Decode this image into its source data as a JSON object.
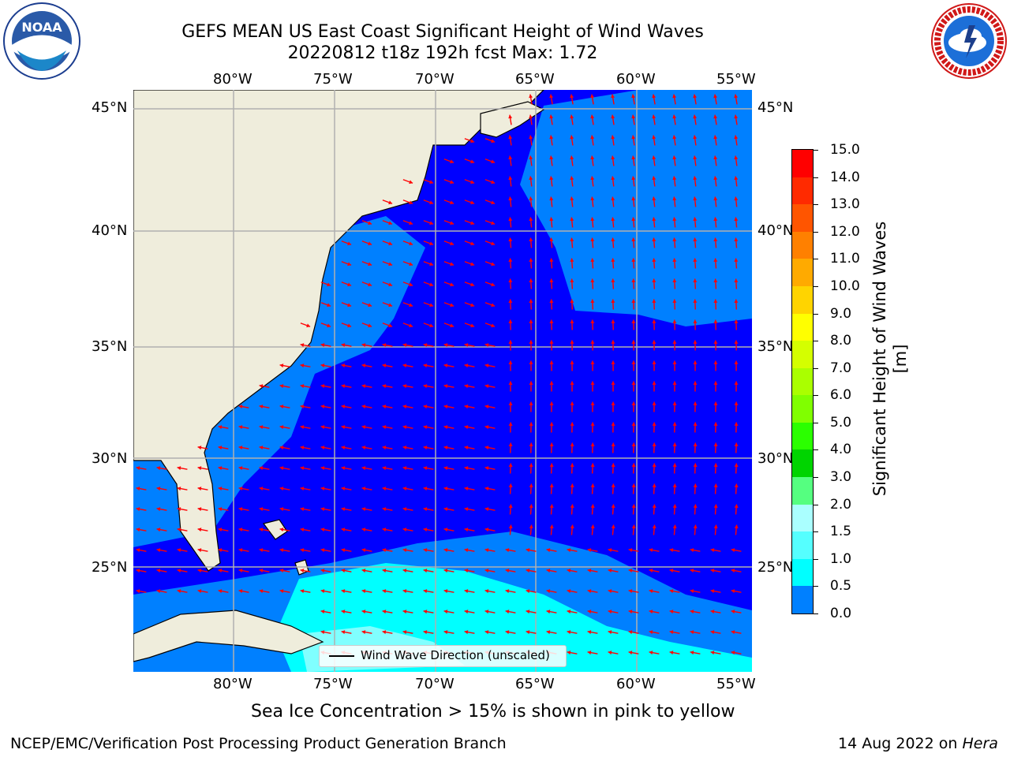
{
  "title": {
    "line1": "GEFS MEAN US East Coast Significant Height of Wind Waves",
    "line2": "20220812 t18z 192h fcst   Max: 1.72"
  },
  "logos": {
    "left": "NOAA",
    "right_text": "NATIONAL WEATHER SERVICE"
  },
  "map": {
    "lon_labels": [
      "80°W",
      "75°W",
      "70°W",
      "65°W",
      "60°W",
      "55°W"
    ],
    "lat_labels": [
      "45°N",
      "40°N",
      "35°N",
      "30°N",
      "25°N"
    ],
    "legend_label": "Wind Wave Direction (unscaled)",
    "colors": {
      "land": "#efeddc",
      "ocean_deep": "#0000ff",
      "ocean_mid": "#0080ff",
      "ocean_light": "#00ffff",
      "ocean_pale": "#80ffff",
      "arrows": "#ff0000",
      "grid": "#b0b0b0"
    }
  },
  "colorbar": {
    "label": "Significant Height of Wind Waves [m]",
    "ticks": [
      "15.0",
      "14.0",
      "13.0",
      "12.0",
      "11.0",
      "10.0",
      "9.0",
      "8.0",
      "7.0",
      "6.0",
      "5.0",
      "4.0",
      "3.0",
      "2.0",
      "1.5",
      "1.0",
      "0.5",
      "0.0"
    ],
    "colors": [
      "#ff0000",
      "#ff2a00",
      "#ff5500",
      "#ff8000",
      "#ffaa00",
      "#ffd400",
      "#ffff00",
      "#d4ff00",
      "#aaff00",
      "#80ff00",
      "#2bff00",
      "#00d400",
      "#55ff80",
      "#aaffff",
      "#55ffff",
      "#00ffff",
      "#0080ff",
      "#0000ff"
    ]
  },
  "footer": {
    "ice_note": "Sea Ice Concentration > 15% is shown in pink to yellow",
    "left": "NCEP/EMC/Verification Post Processing Product Generation Branch",
    "right_date": "14 Aug 2022 on ",
    "right_host": "Hera"
  }
}
